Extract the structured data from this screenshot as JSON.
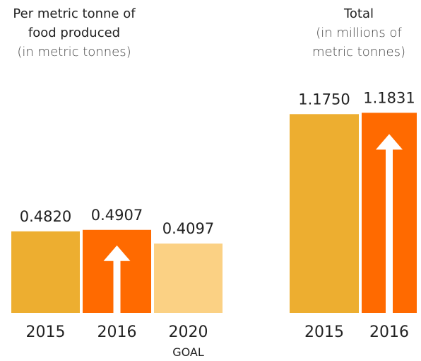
{
  "chart_data": [
    {
      "type": "bar",
      "title": "Per metric tonne of food produced",
      "subtitle": "(in metric tonnes)",
      "categories": [
        "2015",
        "2016",
        "2020"
      ],
      "annotation": "GOAL",
      "values": [
        0.482,
        0.4907,
        0.4097
      ],
      "value_labels": [
        "0.4820",
        "0.4907",
        "0.4097"
      ],
      "colors": [
        "#edae30",
        "#ff6a00",
        "#fbd184"
      ],
      "ylim": [
        0,
        1.85
      ]
    },
    {
      "type": "bar",
      "title": "Total",
      "subtitle": "(in millions of metric tonnes)",
      "categories": [
        "2015",
        "2016"
      ],
      "values": [
        1.175,
        1.1831
      ],
      "value_labels": [
        "1.1750",
        "1.1831"
      ],
      "colors": [
        "#edae30",
        "#ff6a00"
      ],
      "ylim": [
        0,
        1.85
      ]
    }
  ]
}
